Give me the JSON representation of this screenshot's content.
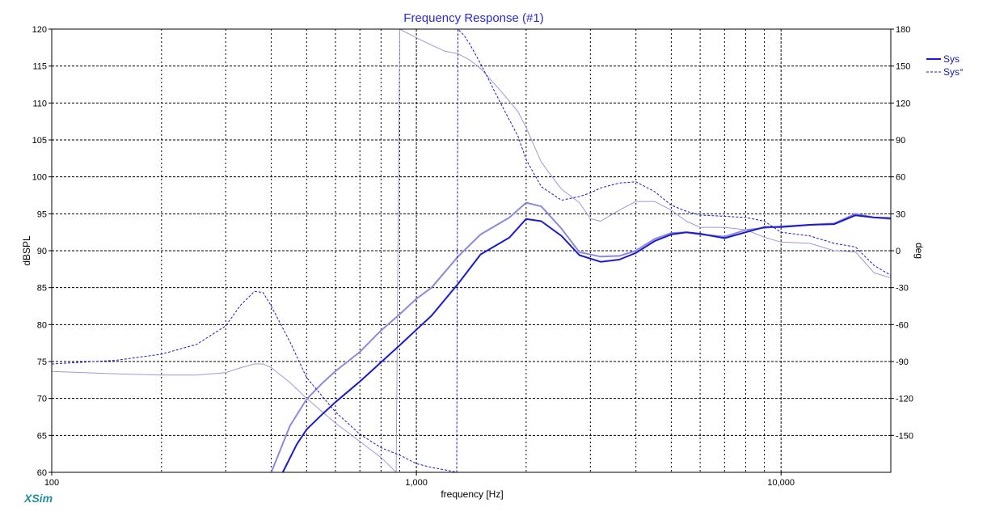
{
  "chart_data": {
    "type": "line",
    "title": "Frequency Response (#1)",
    "xlabel": "frequency [Hz]",
    "ylabel": "dBSPL",
    "y2label": "deg",
    "xscale": "log",
    "xlim": [
      100,
      20000
    ],
    "ylim": [
      60,
      120
    ],
    "y2lim": [
      -180,
      180
    ],
    "grid": true,
    "legend_position": "top-right",
    "x_ticks": [
      100,
      1000,
      10000
    ],
    "x_tick_labels": [
      "100",
      "1,000",
      "10,000"
    ],
    "y_ticks": [
      60,
      65,
      70,
      75,
      80,
      85,
      90,
      95,
      100,
      105,
      110,
      115,
      120
    ],
    "y_tick_labels": [
      "60",
      "65",
      "70",
      "75",
      "80",
      "85",
      "90",
      "95",
      "100",
      "105",
      "110",
      "115",
      "120"
    ],
    "y2_ticks": [
      -150,
      -120,
      -90,
      -60,
      -30,
      0,
      30,
      60,
      90,
      120,
      150,
      180
    ],
    "y2_tick_labels": [
      "-150",
      "-120",
      "-90",
      "-60",
      "-30",
      "0",
      "30",
      "60",
      "90",
      "120",
      "150",
      "180"
    ],
    "legend": [
      {
        "label": "Sys",
        "style": "solid",
        "color": "#1a1ad0"
      },
      {
        "label": "Sys°",
        "style": "dashed",
        "color": "#1a1ad0"
      }
    ],
    "series": [
      {
        "name": "Sys",
        "kind": "magnitude",
        "axis": "left",
        "color": "#1a1ad0",
        "style": "solid",
        "width": 2,
        "x": [
          430,
          470,
          500,
          550,
          600,
          700,
          800,
          900,
          1000,
          1100,
          1300,
          1500,
          1800,
          2000,
          2200,
          2500,
          2800,
          3200,
          3600,
          4000,
          4500,
          5000,
          5500,
          6000,
          7000,
          8000,
          9000,
          10000,
          12000,
          14000,
          16000,
          18000,
          20000
        ],
        "y": [
          60,
          63.8,
          65.8,
          67.8,
          69.5,
          72.3,
          74.9,
          77.2,
          79.3,
          81.2,
          85.5,
          89.5,
          91.8,
          94.3,
          94.0,
          92.0,
          89.4,
          88.5,
          88.8,
          89.7,
          91.3,
          92.2,
          92.5,
          92.3,
          91.7,
          92.5,
          93.2,
          93.2,
          93.5,
          93.6,
          94.8,
          94.5,
          94.4
        ]
      },
      {
        "name": "",
        "kind": "magnitude-reference",
        "axis": "left",
        "color": "#8a8ad8",
        "style": "solid",
        "width": 2,
        "x": [
          400,
          450,
          500,
          550,
          600,
          700,
          800,
          900,
          1000,
          1100,
          1300,
          1500,
          1800,
          2000,
          2200,
          2500,
          2800,
          3200,
          3600,
          4000,
          4500,
          5000,
          5500,
          6000,
          7000,
          8000,
          9000,
          10000,
          12000,
          14000,
          16000,
          18000,
          20000
        ],
        "y": [
          60,
          66.3,
          69.9,
          72.0,
          73.7,
          76.3,
          79.2,
          81.4,
          83.5,
          85.0,
          89.2,
          92.2,
          94.5,
          96.5,
          96.0,
          93.0,
          89.8,
          89.2,
          89.3,
          90.0,
          91.6,
          92.4,
          92.5,
          92.2,
          91.9,
          92.8,
          93.1,
          93.3,
          93.5,
          93.7,
          95.0,
          94.5,
          94.3
        ]
      },
      {
        "name": "Sys°",
        "kind": "phase",
        "axis": "right",
        "color": "#1a1ad0",
        "style": "dashed",
        "width": 1,
        "x": [
          100,
          150,
          200,
          250,
          300,
          330,
          360,
          380,
          400,
          450,
          500,
          600,
          700,
          800,
          900,
          1000,
          1100,
          1200,
          1290,
          1300,
          1310,
          1350,
          1400,
          1500,
          1700,
          1900,
          2000,
          2200,
          2500,
          2800,
          3000,
          3200,
          3600,
          4000,
          4500,
          5000,
          5500,
          6000,
          7000,
          8000,
          9000,
          10000,
          12000,
          14000,
          16000,
          18000,
          20000
        ],
        "y": [
          -92,
          -89,
          -84,
          -76,
          -61,
          -44,
          -33,
          -34,
          -45,
          -74,
          -103,
          -131,
          -149,
          -160,
          -166,
          -173,
          -176,
          -178,
          -180,
          180,
          179,
          175,
          168,
          152,
          120,
          93,
          74,
          52,
          41,
          44,
          47,
          51,
          55,
          56,
          48,
          37,
          32,
          29,
          28,
          27,
          24,
          15,
          12,
          6,
          3,
          -12,
          -20
        ]
      },
      {
        "name": "",
        "kind": "phase-reference",
        "axis": "right",
        "color": "#9a9ad8",
        "style": "solid",
        "width": 1,
        "x": [
          100,
          150,
          200,
          250,
          300,
          330,
          360,
          380,
          400,
          450,
          500,
          600,
          700,
          800,
          880,
          900,
          1000,
          1100,
          1200,
          1300,
          1400,
          1500,
          1700,
          1900,
          2000,
          2200,
          2500,
          2800,
          3000,
          3200,
          3600,
          4000,
          4500,
          5000,
          5500,
          6000,
          7000,
          8000,
          9000,
          10000,
          12000,
          14000,
          16000,
          18000,
          20000
        ],
        "y": [
          -98,
          -100,
          -101,
          -101,
          -99,
          -95,
          -92,
          -92,
          -95,
          -107,
          -120,
          -140,
          -155,
          -168,
          -180,
          180,
          173,
          167,
          162,
          160,
          155,
          148,
          130,
          113,
          100,
          72,
          50,
          39,
          26,
          24,
          33,
          40,
          40,
          33,
          24,
          19,
          19,
          17,
          11,
          7,
          6,
          0,
          -1,
          -18,
          -22
        ]
      }
    ]
  },
  "footer": {
    "brand": "XSim"
  }
}
